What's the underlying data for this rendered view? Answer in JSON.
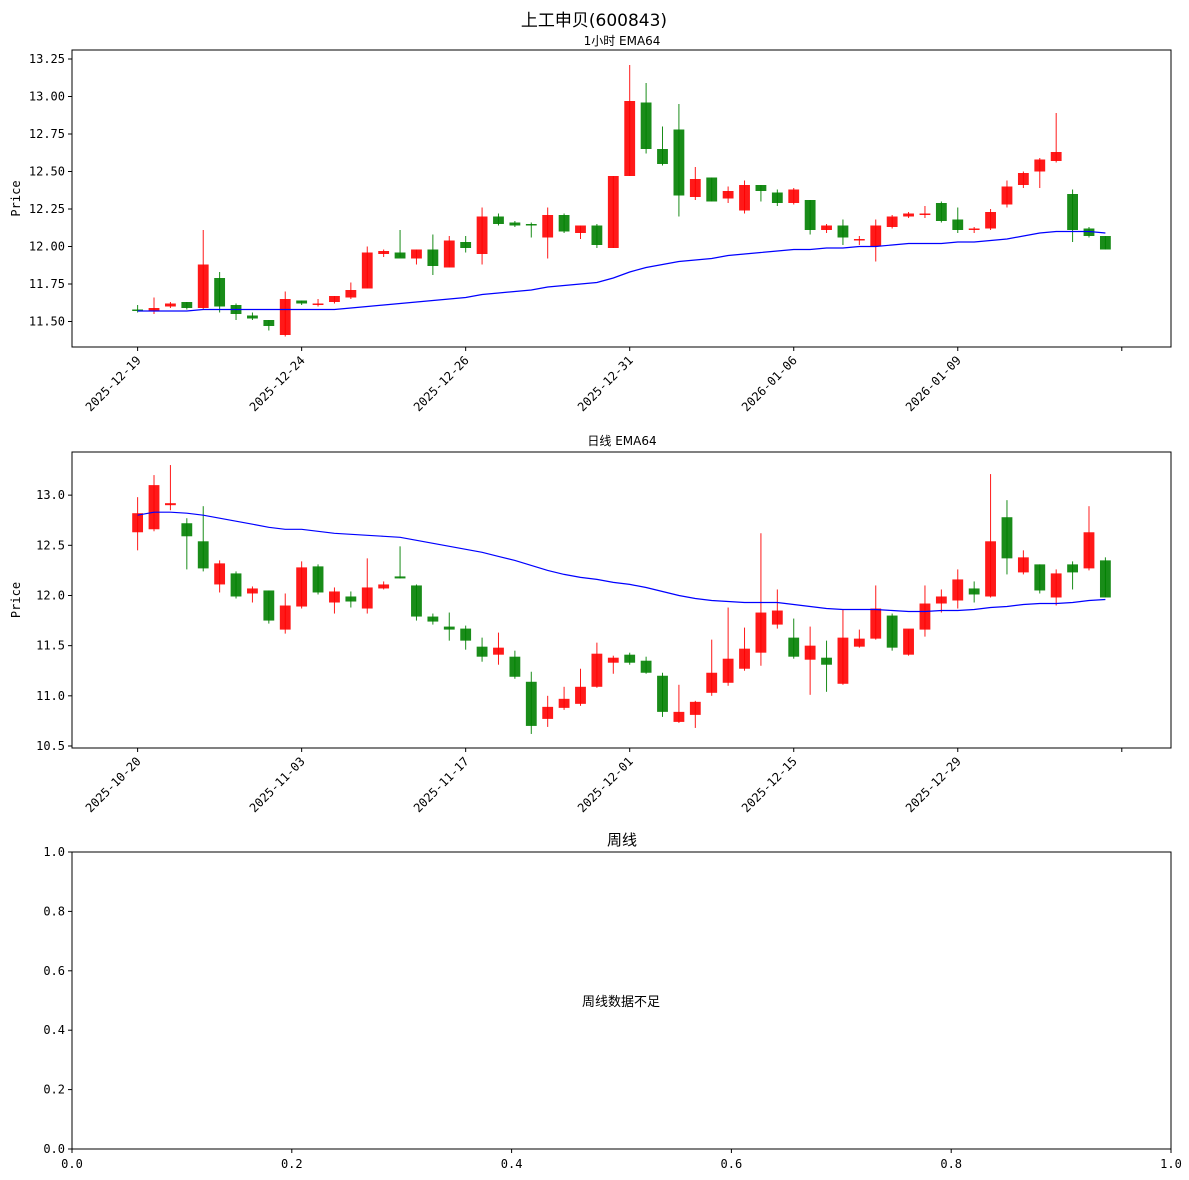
{
  "figure": {
    "title": "上工申贝(600843)"
  },
  "chart_data": [
    {
      "type": "candlestick",
      "title": "1小时 EMA64",
      "ylabel": "Price",
      "ylim": [
        11.33,
        13.31
      ],
      "yticks": [
        11.5,
        11.75,
        12.0,
        12.25,
        12.5,
        12.75,
        13.0,
        13.25
      ],
      "ytick_labels": [
        "11.50",
        "11.75",
        "12.00",
        "12.25",
        "12.50",
        "12.75",
        "13.00",
        "13.25"
      ],
      "xlim": [
        -4,
        63
      ],
      "xticks": [
        0,
        10,
        20,
        30,
        40,
        50,
        60
      ],
      "xtick_labels": [
        "2025-12-19",
        "2025-12-24",
        "2025-12-26",
        "2025-12-31",
        "2026-01-06",
        "2026-01-09",
        ""
      ],
      "up_color": "#ff0000",
      "down_color": "#008000",
      "ema_color": "#0000ff",
      "candles": [
        {
          "x": 0,
          "o": 11.58,
          "h": 11.61,
          "l": 11.56,
          "c": 11.57
        },
        {
          "x": 1,
          "o": 11.57,
          "h": 11.66,
          "l": 11.55,
          "c": 11.59
        },
        {
          "x": 2,
          "o": 11.6,
          "h": 11.63,
          "l": 11.59,
          "c": 11.62
        },
        {
          "x": 3,
          "o": 11.63,
          "h": 11.63,
          "l": 11.58,
          "c": 11.59
        },
        {
          "x": 4,
          "o": 11.59,
          "h": 12.11,
          "l": 11.58,
          "c": 11.88
        },
        {
          "x": 5,
          "o": 11.79,
          "h": 11.83,
          "l": 11.56,
          "c": 11.6
        },
        {
          "x": 6,
          "o": 11.61,
          "h": 11.62,
          "l": 11.51,
          "c": 11.55
        },
        {
          "x": 7,
          "o": 11.54,
          "h": 11.56,
          "l": 11.51,
          "c": 11.52
        },
        {
          "x": 8,
          "o": 11.51,
          "h": 11.51,
          "l": 11.44,
          "c": 11.47
        },
        {
          "x": 9,
          "o": 11.41,
          "h": 11.7,
          "l": 11.4,
          "c": 11.65
        },
        {
          "x": 10,
          "o": 11.64,
          "h": 11.64,
          "l": 11.61,
          "c": 11.62
        },
        {
          "x": 11,
          "o": 11.62,
          "h": 11.65,
          "l": 11.6,
          "c": 11.62
        },
        {
          "x": 12,
          "o": 11.63,
          "h": 11.67,
          "l": 11.62,
          "c": 11.67
        },
        {
          "x": 13,
          "o": 11.66,
          "h": 11.76,
          "l": 11.65,
          "c": 11.71
        },
        {
          "x": 14,
          "o": 11.72,
          "h": 12.0,
          "l": 11.72,
          "c": 11.96
        },
        {
          "x": 15,
          "o": 11.95,
          "h": 11.98,
          "l": 11.93,
          "c": 11.97
        },
        {
          "x": 16,
          "o": 11.96,
          "h": 12.11,
          "l": 11.93,
          "c": 11.92
        },
        {
          "x": 17,
          "o": 11.92,
          "h": 11.98,
          "l": 11.88,
          "c": 11.98
        },
        {
          "x": 18,
          "o": 11.98,
          "h": 12.08,
          "l": 11.81,
          "c": 11.87
        },
        {
          "x": 19,
          "o": 11.86,
          "h": 12.07,
          "l": 11.86,
          "c": 12.04
        },
        {
          "x": 20,
          "o": 12.03,
          "h": 12.07,
          "l": 11.96,
          "c": 11.99
        },
        {
          "x": 21,
          "o": 11.95,
          "h": 12.26,
          "l": 11.88,
          "c": 12.2
        },
        {
          "x": 22,
          "o": 12.2,
          "h": 12.22,
          "l": 12.14,
          "c": 12.15
        },
        {
          "x": 23,
          "o": 12.16,
          "h": 12.17,
          "l": 12.13,
          "c": 12.14
        },
        {
          "x": 24,
          "o": 12.15,
          "h": 12.16,
          "l": 12.06,
          "c": 12.14
        },
        {
          "x": 25,
          "o": 12.06,
          "h": 12.26,
          "l": 11.92,
          "c": 12.21
        },
        {
          "x": 26,
          "o": 12.21,
          "h": 12.22,
          "l": 12.09,
          "c": 12.1
        },
        {
          "x": 27,
          "o": 12.09,
          "h": 12.14,
          "l": 12.05,
          "c": 12.14
        },
        {
          "x": 28,
          "o": 12.14,
          "h": 12.15,
          "l": 11.99,
          "c": 12.01
        },
        {
          "x": 29,
          "o": 11.99,
          "h": 12.47,
          "l": 11.99,
          "c": 12.47
        },
        {
          "x": 30,
          "o": 12.47,
          "h": 13.21,
          "l": 12.47,
          "c": 12.97
        },
        {
          "x": 31,
          "o": 12.96,
          "h": 13.09,
          "l": 12.62,
          "c": 12.65
        },
        {
          "x": 32,
          "o": 12.65,
          "h": 12.8,
          "l": 12.54,
          "c": 12.55
        },
        {
          "x": 33,
          "o": 12.78,
          "h": 12.95,
          "l": 12.2,
          "c": 12.34
        },
        {
          "x": 34,
          "o": 12.33,
          "h": 12.53,
          "l": 12.31,
          "c": 12.45
        },
        {
          "x": 35,
          "o": 12.46,
          "h": 12.46,
          "l": 12.3,
          "c": 12.3
        },
        {
          "x": 36,
          "o": 12.32,
          "h": 12.4,
          "l": 12.29,
          "c": 12.37
        },
        {
          "x": 37,
          "o": 12.24,
          "h": 12.44,
          "l": 12.22,
          "c": 12.41
        },
        {
          "x": 38,
          "o": 12.41,
          "h": 12.41,
          "l": 12.3,
          "c": 12.37
        },
        {
          "x": 39,
          "o": 12.36,
          "h": 12.38,
          "l": 12.27,
          "c": 12.29
        },
        {
          "x": 40,
          "o": 12.29,
          "h": 12.39,
          "l": 12.28,
          "c": 12.38
        },
        {
          "x": 41,
          "o": 12.31,
          "h": 12.31,
          "l": 12.08,
          "c": 12.11
        },
        {
          "x": 42,
          "o": 12.11,
          "h": 12.15,
          "l": 12.09,
          "c": 12.14
        },
        {
          "x": 43,
          "o": 12.14,
          "h": 12.18,
          "l": 12.01,
          "c": 12.06
        },
        {
          "x": 44,
          "o": 12.05,
          "h": 12.07,
          "l": 12.01,
          "c": 12.05
        },
        {
          "x": 45,
          "o": 12.0,
          "h": 12.18,
          "l": 11.9,
          "c": 12.14
        },
        {
          "x": 46,
          "o": 12.13,
          "h": 12.21,
          "l": 12.12,
          "c": 12.2
        },
        {
          "x": 47,
          "o": 12.2,
          "h": 12.23,
          "l": 12.19,
          "c": 12.22
        },
        {
          "x": 48,
          "o": 12.22,
          "h": 12.27,
          "l": 12.19,
          "c": 12.22
        },
        {
          "x": 49,
          "o": 12.29,
          "h": 12.3,
          "l": 12.16,
          "c": 12.17
        },
        {
          "x": 50,
          "o": 12.18,
          "h": 12.26,
          "l": 12.09,
          "c": 12.11
        },
        {
          "x": 51,
          "o": 12.11,
          "h": 12.13,
          "l": 12.09,
          "c": 12.12
        },
        {
          "x": 52,
          "o": 12.12,
          "h": 12.25,
          "l": 12.11,
          "c": 12.23
        },
        {
          "x": 53,
          "o": 12.28,
          "h": 12.44,
          "l": 12.26,
          "c": 12.4
        },
        {
          "x": 54,
          "o": 12.41,
          "h": 12.5,
          "l": 12.39,
          "c": 12.49
        },
        {
          "x": 55,
          "o": 12.5,
          "h": 12.59,
          "l": 12.39,
          "c": 12.58
        },
        {
          "x": 56,
          "o": 12.57,
          "h": 12.89,
          "l": 12.56,
          "c": 12.63
        },
        {
          "x": 57,
          "o": 12.35,
          "h": 12.38,
          "l": 12.03,
          "c": 12.11
        },
        {
          "x": 58,
          "o": 12.12,
          "h": 12.13,
          "l": 12.06,
          "c": 12.07
        },
        {
          "x": 59,
          "o": 12.07,
          "h": 12.07,
          "l": 11.98,
          "c": 11.98
        }
      ],
      "ema": [
        11.57,
        11.57,
        11.57,
        11.57,
        11.58,
        11.58,
        11.58,
        11.58,
        11.58,
        11.58,
        11.58,
        11.58,
        11.58,
        11.59,
        11.6,
        11.61,
        11.62,
        11.63,
        11.64,
        11.65,
        11.66,
        11.68,
        11.69,
        11.7,
        11.71,
        11.73,
        11.74,
        11.75,
        11.76,
        11.79,
        11.83,
        11.86,
        11.88,
        11.9,
        11.91,
        11.92,
        11.94,
        11.95,
        11.96,
        11.97,
        11.98,
        11.98,
        11.99,
        11.99,
        12.0,
        12.0,
        12.01,
        12.02,
        12.02,
        12.02,
        12.03,
        12.03,
        12.04,
        12.05,
        12.07,
        12.09,
        12.1,
        12.1,
        12.1,
        12.09
      ]
    },
    {
      "type": "candlestick",
      "title": "日线 EMA64",
      "ylabel": "Price",
      "ylim": [
        10.48,
        13.43
      ],
      "yticks": [
        10.5,
        11.0,
        11.5,
        12.0,
        12.5,
        13.0
      ],
      "ytick_labels": [
        "10.5",
        "11.0",
        "11.5",
        "12.0",
        "12.5",
        "13.0"
      ],
      "xlim": [
        -4,
        63
      ],
      "xticks": [
        0,
        10,
        20,
        30,
        40,
        50,
        60
      ],
      "xtick_labels": [
        "2025-10-20",
        "2025-11-03",
        "2025-11-17",
        "2025-12-01",
        "2025-12-15",
        "2025-12-29",
        ""
      ],
      "up_color": "#ff0000",
      "down_color": "#008000",
      "ema_color": "#0000ff",
      "candles": [
        {
          "x": 0,
          "o": 12.63,
          "h": 12.98,
          "l": 12.45,
          "c": 12.82
        },
        {
          "x": 1,
          "o": 12.66,
          "h": 13.2,
          "l": 12.64,
          "c": 13.1
        },
        {
          "x": 2,
          "o": 12.9,
          "h": 13.3,
          "l": 12.85,
          "c": 12.92
        },
        {
          "x": 3,
          "o": 12.72,
          "h": 12.77,
          "l": 12.26,
          "c": 12.59
        },
        {
          "x": 4,
          "o": 12.54,
          "h": 12.89,
          "l": 12.24,
          "c": 12.27
        },
        {
          "x": 5,
          "o": 12.11,
          "h": 12.35,
          "l": 12.03,
          "c": 12.32
        },
        {
          "x": 6,
          "o": 12.22,
          "h": 12.24,
          "l": 11.97,
          "c": 11.99
        },
        {
          "x": 7,
          "o": 12.02,
          "h": 12.09,
          "l": 11.93,
          "c": 12.07
        },
        {
          "x": 8,
          "o": 12.05,
          "h": 12.05,
          "l": 11.72,
          "c": 11.75
        },
        {
          "x": 9,
          "o": 11.66,
          "h": 12.02,
          "l": 11.62,
          "c": 11.9
        },
        {
          "x": 10,
          "o": 11.89,
          "h": 12.34,
          "l": 11.87,
          "c": 12.28
        },
        {
          "x": 11,
          "o": 12.29,
          "h": 12.31,
          "l": 12.01,
          "c": 12.03
        },
        {
          "x": 12,
          "o": 11.93,
          "h": 12.08,
          "l": 11.82,
          "c": 12.04
        },
        {
          "x": 13,
          "o": 11.99,
          "h": 12.04,
          "l": 11.88,
          "c": 11.94
        },
        {
          "x": 14,
          "o": 11.87,
          "h": 12.37,
          "l": 11.82,
          "c": 12.08
        },
        {
          "x": 15,
          "o": 12.07,
          "h": 12.14,
          "l": 12.06,
          "c": 12.11
        },
        {
          "x": 16,
          "o": 12.19,
          "h": 12.49,
          "l": 12.17,
          "c": 12.17
        },
        {
          "x": 17,
          "o": 12.1,
          "h": 12.11,
          "l": 11.75,
          "c": 11.79
        },
        {
          "x": 18,
          "o": 11.79,
          "h": 11.82,
          "l": 11.71,
          "c": 11.74
        },
        {
          "x": 19,
          "o": 11.69,
          "h": 11.83,
          "l": 11.55,
          "c": 11.66
        },
        {
          "x": 20,
          "o": 11.67,
          "h": 11.7,
          "l": 11.46,
          "c": 11.55
        },
        {
          "x": 21,
          "o": 11.49,
          "h": 11.58,
          "l": 11.34,
          "c": 11.39
        },
        {
          "x": 22,
          "o": 11.41,
          "h": 11.63,
          "l": 11.31,
          "c": 11.48
        },
        {
          "x": 23,
          "o": 11.39,
          "h": 11.45,
          "l": 11.17,
          "c": 11.19
        },
        {
          "x": 24,
          "o": 11.14,
          "h": 11.24,
          "l": 10.62,
          "c": 10.7
        },
        {
          "x": 25,
          "o": 10.77,
          "h": 11.0,
          "l": 10.69,
          "c": 10.89
        },
        {
          "x": 26,
          "o": 10.88,
          "h": 11.09,
          "l": 10.86,
          "c": 10.97
        },
        {
          "x": 27,
          "o": 10.92,
          "h": 11.27,
          "l": 10.9,
          "c": 11.09
        },
        {
          "x": 28,
          "o": 11.09,
          "h": 11.53,
          "l": 11.08,
          "c": 11.42
        },
        {
          "x": 29,
          "o": 11.33,
          "h": 11.4,
          "l": 11.22,
          "c": 11.38
        },
        {
          "x": 30,
          "o": 11.41,
          "h": 11.43,
          "l": 11.31,
          "c": 11.33
        },
        {
          "x": 31,
          "o": 11.35,
          "h": 11.39,
          "l": 11.22,
          "c": 11.23
        },
        {
          "x": 32,
          "o": 11.2,
          "h": 11.23,
          "l": 10.79,
          "c": 10.84
        },
        {
          "x": 33,
          "o": 10.74,
          "h": 11.11,
          "l": 10.73,
          "c": 10.84
        },
        {
          "x": 34,
          "o": 10.81,
          "h": 10.95,
          "l": 10.68,
          "c": 10.94
        },
        {
          "x": 35,
          "o": 11.03,
          "h": 11.56,
          "l": 11.0,
          "c": 11.23
        },
        {
          "x": 36,
          "o": 11.13,
          "h": 11.88,
          "l": 11.1,
          "c": 11.37
        },
        {
          "x": 37,
          "o": 11.27,
          "h": 11.68,
          "l": 11.25,
          "c": 11.47
        },
        {
          "x": 38,
          "o": 11.43,
          "h": 12.62,
          "l": 11.3,
          "c": 11.83
        },
        {
          "x": 39,
          "o": 11.71,
          "h": 12.06,
          "l": 11.67,
          "c": 11.85
        },
        {
          "x": 40,
          "o": 11.58,
          "h": 11.77,
          "l": 11.37,
          "c": 11.39
        },
        {
          "x": 41,
          "o": 11.36,
          "h": 11.69,
          "l": 11.01,
          "c": 11.5
        },
        {
          "x": 42,
          "o": 11.38,
          "h": 11.55,
          "l": 11.04,
          "c": 11.31
        },
        {
          "x": 43,
          "o": 11.12,
          "h": 11.86,
          "l": 11.11,
          "c": 11.58
        },
        {
          "x": 44,
          "o": 11.49,
          "h": 11.66,
          "l": 11.48,
          "c": 11.57
        },
        {
          "x": 45,
          "o": 11.57,
          "h": 12.1,
          "l": 11.56,
          "c": 11.87
        },
        {
          "x": 46,
          "o": 11.8,
          "h": 11.82,
          "l": 11.45,
          "c": 11.48
        },
        {
          "x": 47,
          "o": 11.41,
          "h": 11.66,
          "l": 11.4,
          "c": 11.67
        },
        {
          "x": 48,
          "o": 11.66,
          "h": 12.1,
          "l": 11.59,
          "c": 11.92
        },
        {
          "x": 49,
          "o": 11.92,
          "h": 12.06,
          "l": 11.83,
          "c": 11.99
        },
        {
          "x": 50,
          "o": 11.95,
          "h": 12.26,
          "l": 11.87,
          "c": 12.16
        },
        {
          "x": 51,
          "o": 12.07,
          "h": 12.14,
          "l": 11.93,
          "c": 12.01
        },
        {
          "x": 52,
          "o": 11.99,
          "h": 13.21,
          "l": 11.98,
          "c": 12.54
        },
        {
          "x": 53,
          "o": 12.78,
          "h": 12.95,
          "l": 12.21,
          "c": 12.37
        },
        {
          "x": 54,
          "o": 12.23,
          "h": 12.45,
          "l": 12.21,
          "c": 12.38
        },
        {
          "x": 55,
          "o": 12.31,
          "h": 12.31,
          "l": 12.02,
          "c": 12.05
        },
        {
          "x": 56,
          "o": 11.98,
          "h": 12.26,
          "l": 11.9,
          "c": 12.22
        },
        {
          "x": 57,
          "o": 12.31,
          "h": 12.34,
          "l": 12.06,
          "c": 12.23
        },
        {
          "x": 58,
          "o": 12.27,
          "h": 12.89,
          "l": 12.25,
          "c": 12.63
        },
        {
          "x": 59,
          "o": 12.35,
          "h": 12.38,
          "l": 11.98,
          "c": 11.98
        }
      ],
      "ema": [
        12.8,
        12.83,
        12.83,
        12.82,
        12.8,
        12.77,
        12.74,
        12.71,
        12.68,
        12.66,
        12.66,
        12.64,
        12.62,
        12.61,
        12.6,
        12.59,
        12.58,
        12.55,
        12.52,
        12.49,
        12.46,
        12.43,
        12.39,
        12.35,
        12.3,
        12.25,
        12.21,
        12.18,
        12.16,
        12.13,
        12.11,
        12.08,
        12.04,
        12.0,
        11.97,
        11.95,
        11.94,
        11.93,
        11.93,
        11.93,
        11.91,
        11.89,
        11.87,
        11.86,
        11.86,
        11.86,
        11.85,
        11.84,
        11.84,
        11.85,
        11.85,
        11.86,
        11.88,
        11.89,
        11.91,
        11.92,
        11.92,
        11.93,
        11.95,
        11.96
      ]
    },
    {
      "type": "empty",
      "title": "周线",
      "message": "周线数据不足",
      "xlim": [
        0,
        1
      ],
      "ylim": [
        0,
        1
      ],
      "xticks": [
        0,
        0.2,
        0.4,
        0.6,
        0.8,
        1.0
      ],
      "yticks": [
        0,
        0.2,
        0.4,
        0.6,
        0.8,
        1.0
      ],
      "xtick_labels": [
        "0.0",
        "0.2",
        "0.4",
        "0.6",
        "0.8",
        "1.0"
      ],
      "ytick_labels": [
        "0.0",
        "0.2",
        "0.4",
        "0.6",
        "0.8",
        "1.0"
      ]
    }
  ]
}
